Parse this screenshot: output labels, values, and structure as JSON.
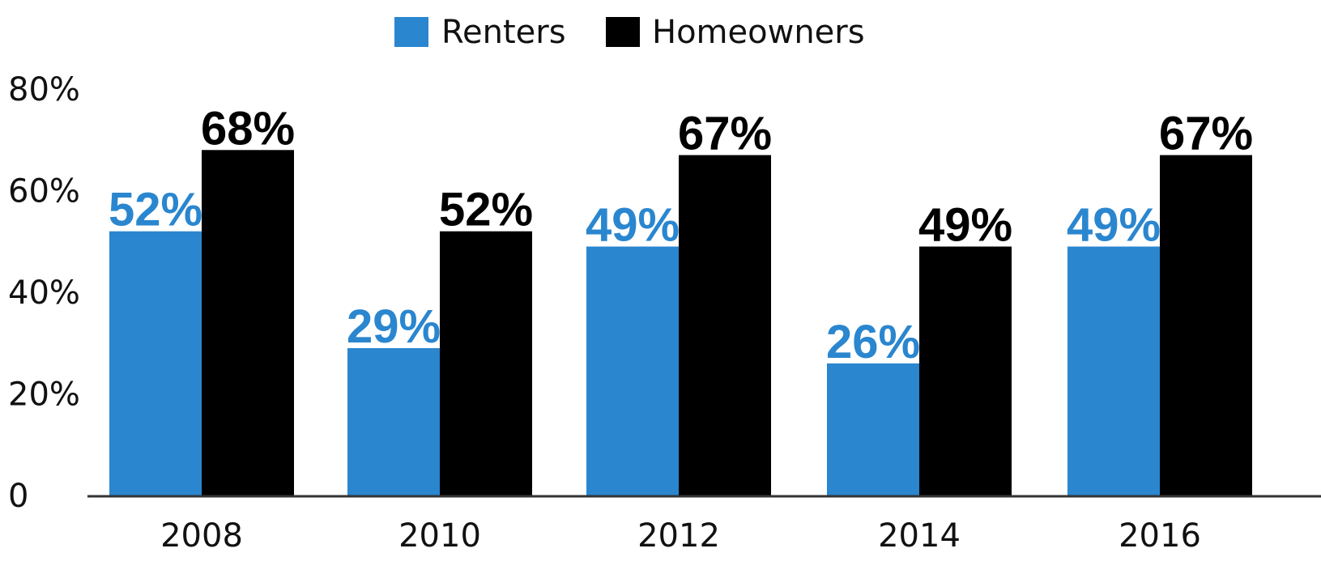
{
  "chart_data": {
    "type": "bar",
    "categories": [
      "2008",
      "2010",
      "2012",
      "2014",
      "2016"
    ],
    "series": [
      {
        "name": "Renters",
        "color": "#2a86cf",
        "values": [
          52,
          29,
          49,
          26,
          49
        ],
        "labels": [
          "52%",
          "29%",
          "49%",
          "26%",
          "49%"
        ]
      },
      {
        "name": "Homeowners",
        "color": "#000000",
        "values": [
          68,
          52,
          67,
          49,
          67
        ],
        "labels": [
          "68%",
          "52%",
          "67%",
          "49%",
          "67%"
        ]
      }
    ],
    "ylim": [
      0,
      80
    ],
    "yticks": [
      0,
      20,
      40,
      60,
      80
    ],
    "ytick_labels": [
      "0",
      "20%",
      "40%",
      "60%",
      "80%"
    ],
    "legend_position": "top-center",
    "grid": false
  }
}
